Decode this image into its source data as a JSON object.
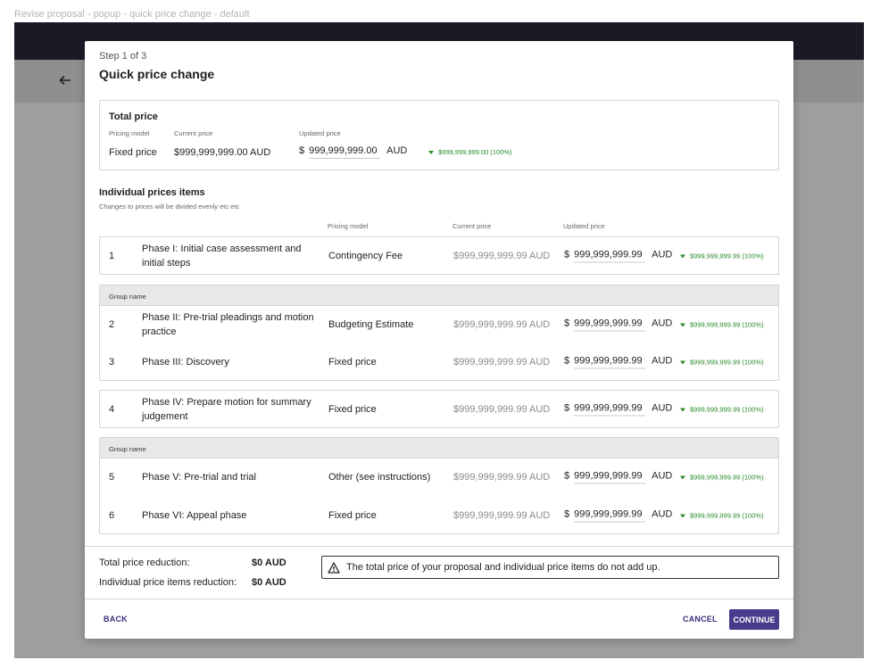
{
  "frame_label": "Revise proposal - popup - quick price change - default",
  "modal": {
    "step": "Step 1 of 3",
    "title": "Quick price change"
  },
  "total": {
    "heading": "Total price",
    "pricing_model_label": "Pricing model",
    "current_price_label": "Current price",
    "updated_price_label": "Updated price",
    "pricing_model": "Fixed price",
    "current_price": "$999,999,999.00 AUD",
    "currency_symbol": "$",
    "updated_price": "999,999,999.00",
    "currency_code": "AUD",
    "delta": "$999,999,999.00 (100%)"
  },
  "items_section": {
    "heading": "Individual prices items",
    "subheading": "Changes to prices will be divided evenly etc etc",
    "col_pricing_model": "Pricing model",
    "col_current_price": "Current price",
    "col_updated_price": "Updated price"
  },
  "groups": [
    {
      "label": "Group name"
    },
    {
      "label": "Group name"
    }
  ],
  "items": [
    {
      "num": "1",
      "name": "Phase I: Initial case assessment and initial steps",
      "model": "Contingency Fee",
      "current": "$999,999,999.99 AUD",
      "symbol": "$",
      "updated": "999,999,999.99",
      "unit": "AUD",
      "delta": "$999,999,999.99 (100%)"
    },
    {
      "num": "2",
      "name": "Phase II: Pre-trial pleadings and motion practice",
      "model": "Budgeting Estimate",
      "current": "$999,999,999.99 AUD",
      "symbol": "$",
      "updated": "999,999,999.99",
      "unit": "AUD",
      "delta": "$999,999,999.99 (100%)"
    },
    {
      "num": "3",
      "name": "Phase III: Discovery",
      "model": "Fixed price",
      "current": "$999,999,999.99 AUD",
      "symbol": "$",
      "updated": "999,999,999.99",
      "unit": "AUD",
      "delta": "$999,999,999.99 (100%)"
    },
    {
      "num": "4",
      "name": "Phase IV: Prepare motion for summary judgement",
      "model": "Fixed price",
      "current": "$999,999,999.99 AUD",
      "symbol": "$",
      "updated": "999,999,999.99",
      "unit": "AUD",
      "delta": "$999,999,999.99 (100%)"
    },
    {
      "num": "5",
      "name": "Phase V: Pre-trial and trial",
      "model": "Other (see instructions)",
      "current": "$999,999,999.99 AUD",
      "symbol": "$",
      "updated": "999,999,999.99",
      "unit": "AUD",
      "delta": "$999,999,999.99 (100%)"
    },
    {
      "num": "6",
      "name": "Phase VI: Appeal phase",
      "model": "Fixed price",
      "current": "$999,999,999.99 AUD",
      "symbol": "$",
      "updated": "999,999,999.99",
      "unit": "AUD",
      "delta": "$999,999,999.99 (100%)"
    }
  ],
  "summary": {
    "total_reduction_label": "Total price reduction:",
    "total_reduction_value": "$0 AUD",
    "items_reduction_label": "Individual price items reduction:",
    "items_reduction_value": "$0 AUD",
    "warning": "The total price of your proposal and individual price items do not add up."
  },
  "footer": {
    "back": "BACK",
    "cancel": "CANCEL",
    "continue": "CONTINUE"
  },
  "colors": {
    "accent": "#4a3a8c",
    "delta_green": "#2a8a2a",
    "topbar": "#1a1926"
  }
}
